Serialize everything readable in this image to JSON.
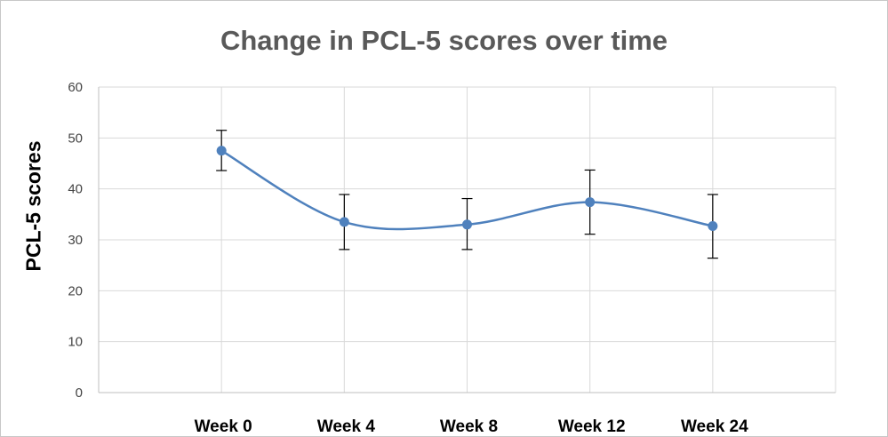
{
  "chart_data": {
    "type": "line",
    "title": "Change in PCL-5 scores over time",
    "xlabel": "",
    "ylabel": "PCL-5 scores",
    "categories": [
      "Week 0",
      "Week 4",
      "Week 8",
      "Week 12",
      "Week 24"
    ],
    "series": [
      {
        "values": [
          47.5,
          33.5,
          33.0,
          37.4,
          32.7
        ],
        "error_upper": [
          51.5,
          38.9,
          38.1,
          43.7,
          38.9
        ],
        "error_lower": [
          43.6,
          28.1,
          28.1,
          31.1,
          26.4
        ],
        "color": "#4f81bd"
      }
    ],
    "ylim": [
      0,
      60
    ],
    "yticks": [
      0,
      10,
      20,
      30,
      40,
      50,
      60
    ],
    "grid": true,
    "smooth": true,
    "legend": "none"
  }
}
